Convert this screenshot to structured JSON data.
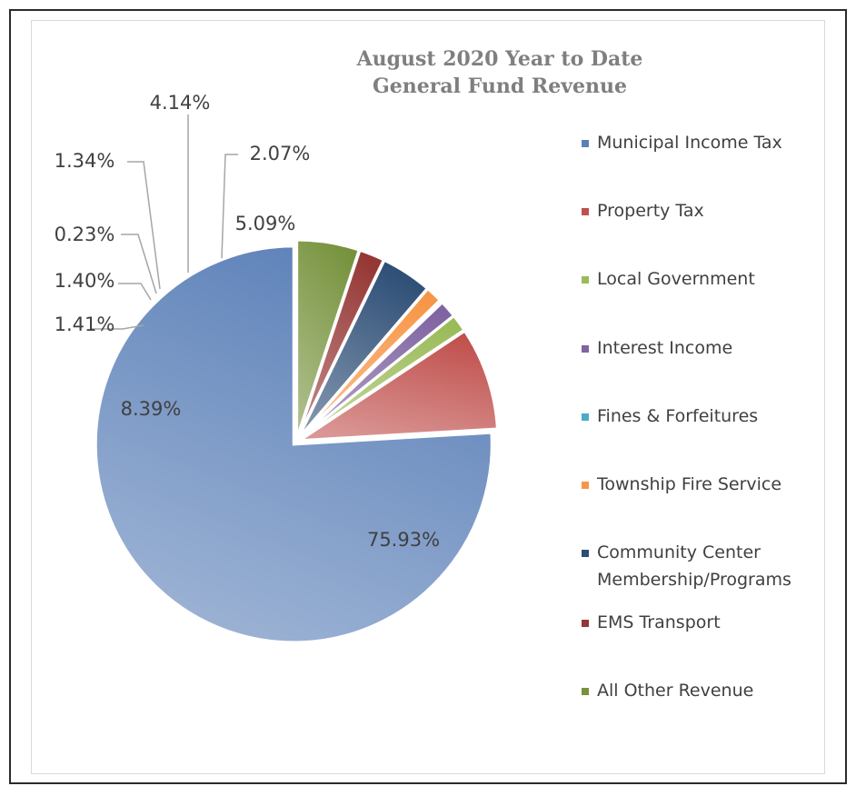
{
  "chart_data": {
    "type": "pie",
    "title": [
      "August 2020 Year to Date",
      "General Fund Revenue"
    ],
    "legend_position": "right",
    "start_angle_deg": 0,
    "direction": "counterclockwise",
    "slices": [
      {
        "name": "Municipal Income Tax",
        "value": 75.93,
        "label": "75.93%",
        "color": "#5b80b8"
      },
      {
        "name": "Property Tax",
        "value": 8.39,
        "label": "8.39%",
        "color": "#c0504d"
      },
      {
        "name": "Local Government",
        "value": 1.41,
        "label": "1.41%",
        "color": "#9bbb59"
      },
      {
        "name": "Interest Income",
        "value": 1.4,
        "label": "1.40%",
        "color": "#8064a2"
      },
      {
        "name": "Fines & Forfeitures",
        "value": 0.23,
        "label": "0.23%",
        "color": "#4bacc6"
      },
      {
        "name": "Township Fire Service",
        "value": 1.34,
        "label": "1.34%",
        "color": "#f79646"
      },
      {
        "name": "Community Center Membership/Programs",
        "value": 4.14,
        "label": "4.14%",
        "color": "#2c4d75"
      },
      {
        "name": "EMS Transport",
        "value": 2.07,
        "label": "2.07%",
        "color": "#953735"
      },
      {
        "name": "All Other Revenue",
        "value": 5.09,
        "label": "5.09%",
        "color": "#76923c"
      }
    ],
    "legend": [
      {
        "lines": [
          "Municipal Income Tax"
        ],
        "color": "#5b80b8"
      },
      {
        "lines": [
          "Property Tax"
        ],
        "color": "#c0504d"
      },
      {
        "lines": [
          "Local Government"
        ],
        "color": "#9bbb59"
      },
      {
        "lines": [
          "Interest Income"
        ],
        "color": "#8064a2"
      },
      {
        "lines": [
          "Fines & Forfeitures"
        ],
        "color": "#4bacc6"
      },
      {
        "lines": [
          "Township Fire Service"
        ],
        "color": "#f79646"
      },
      {
        "lines": [
          "Community Center",
          "Membership/Programs"
        ],
        "color": "#2c4d75"
      },
      {
        "lines": [
          "EMS Transport"
        ],
        "color": "#953735"
      },
      {
        "lines": [
          "All Other Revenue"
        ],
        "color": "#76923c"
      }
    ]
  }
}
